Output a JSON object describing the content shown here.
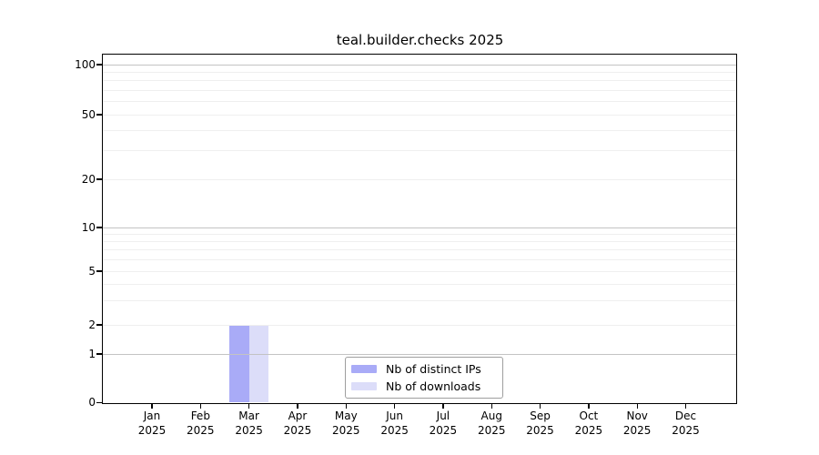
{
  "chart_data": {
    "type": "bar",
    "title": "teal.builder.checks 2025",
    "xlabel": "",
    "ylabel": "",
    "categories": [
      "Jan 2025",
      "Feb 2025",
      "Mar 2025",
      "Apr 2025",
      "May 2025",
      "Jun 2025",
      "Jul 2025",
      "Aug 2025",
      "Sep 2025",
      "Oct 2025",
      "Nov 2025",
      "Dec 2025"
    ],
    "series": [
      {
        "name": "Nb of distinct IPs",
        "color": "#a9abf7",
        "values": [
          0,
          0,
          2,
          0,
          0,
          0,
          0,
          0,
          0,
          0,
          0,
          0
        ]
      },
      {
        "name": "Nb of downloads",
        "color": "#dcddf9",
        "values": [
          0,
          0,
          2,
          0,
          0,
          0,
          0,
          0,
          0,
          0,
          0,
          0
        ]
      }
    ],
    "y_axis": {
      "scale": "log-like",
      "ticks": [
        0,
        1,
        2,
        5,
        10,
        20,
        50,
        100
      ],
      "minor_ticks": [
        3,
        4,
        6,
        7,
        8,
        9,
        30,
        40,
        60,
        70,
        80,
        90
      ],
      "range": [
        0,
        100
      ]
    },
    "grid": "horizontal",
    "legend_position": "inside-bottom-center"
  }
}
